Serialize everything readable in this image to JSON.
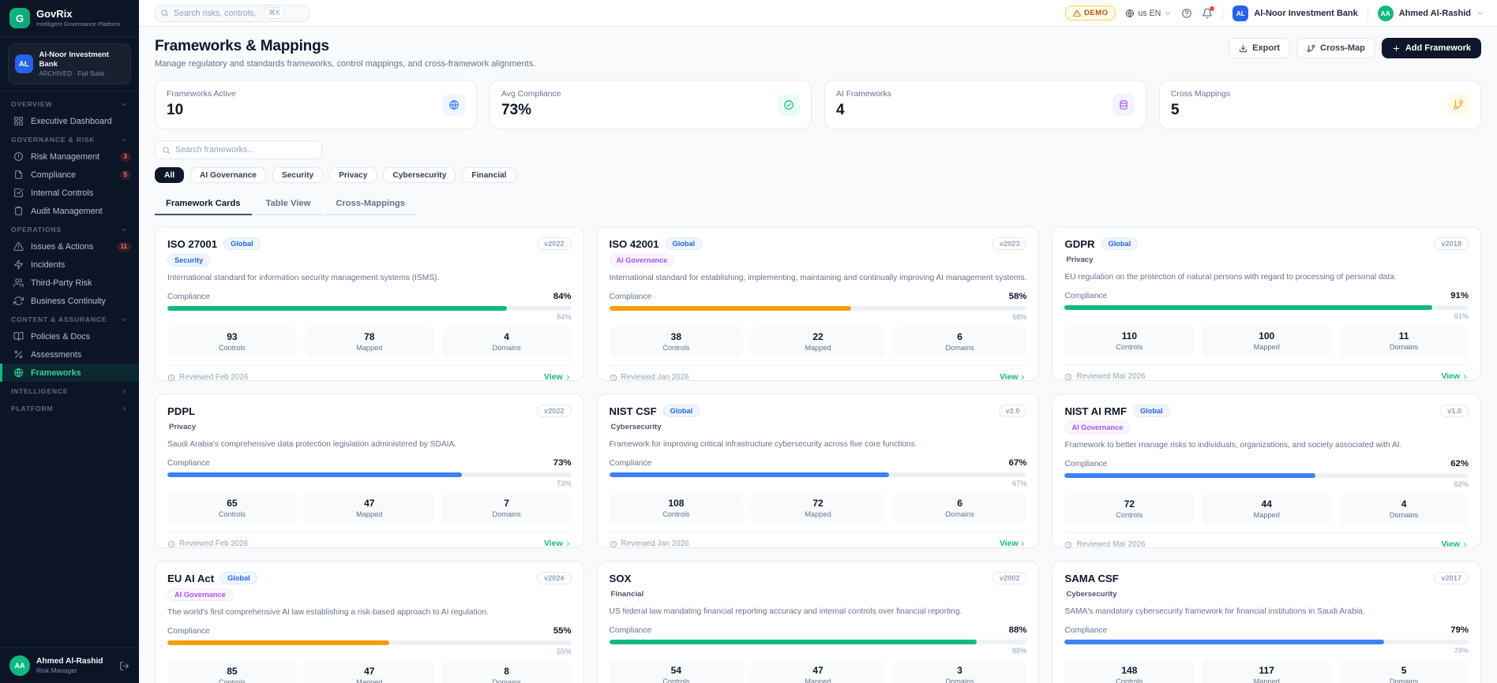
{
  "brand": {
    "initial": "G",
    "name": "GovRix",
    "tagline": "Intelligent Governance Platform"
  },
  "entity": {
    "initials": "AL",
    "name": "Al-Noor Investment Bank",
    "status": "ARCHIVED · Full Suite"
  },
  "topbar": {
    "search_placeholder": "Search risks, controls, frameworks...",
    "search_shortcut": "⌘K",
    "demo_label": "DEMO",
    "locale": "us EN",
    "org_initials": "AL",
    "org_name": "Al-Noor Investment Bank",
    "user_initials": "AA",
    "user_name": "Ahmed Al-Rashid"
  },
  "sidebar": {
    "sections": [
      {
        "label": "OVERVIEW",
        "chevron": "down",
        "items": [
          {
            "label": "Executive Dashboard",
            "icon": "grid"
          }
        ]
      },
      {
        "label": "GOVERNANCE & RISK",
        "chevron": "down",
        "items": [
          {
            "label": "Risk Management",
            "icon": "alert-circle",
            "badge": "3"
          },
          {
            "label": "Compliance",
            "icon": "file",
            "badge": "5"
          },
          {
            "label": "Internal Controls",
            "icon": "check-square"
          },
          {
            "label": "Audit Management",
            "icon": "clipboard"
          }
        ]
      },
      {
        "label": "OPERATIONS",
        "chevron": "down",
        "items": [
          {
            "label": "Issues & Actions",
            "icon": "alert-triangle",
            "badge": "11"
          },
          {
            "label": "Incidents",
            "icon": "zap"
          },
          {
            "label": "Third-Party Risk",
            "icon": "users"
          },
          {
            "label": "Business Continuity",
            "icon": "refresh"
          }
        ]
      },
      {
        "label": "CONTENT & ASSURANCE",
        "chevron": "down",
        "items": [
          {
            "label": "Policies & Docs",
            "icon": "book"
          },
          {
            "label": "Assessments",
            "icon": "percent"
          },
          {
            "label": "Frameworks",
            "icon": "globe",
            "active": true
          }
        ]
      },
      {
        "label": "INTELLIGENCE",
        "chevron": "right",
        "items": []
      },
      {
        "label": "PLATFORM",
        "chevron": "right",
        "items": []
      }
    ],
    "footer": {
      "initials": "AA",
      "name": "Ahmed Al-Rashid",
      "role": "Risk Manager"
    }
  },
  "page": {
    "title": "Frameworks & Mappings",
    "subtitle": "Manage regulatory and standards frameworks, control mappings, and cross-framework alignments.",
    "export_label": "Export",
    "crossmap_label": "Cross-Map",
    "add_label": "Add Framework"
  },
  "stats": [
    {
      "label": "Frameworks Active",
      "value": "10",
      "icon": "globe",
      "fg": "#3b82f6",
      "bg": "#eff6ff"
    },
    {
      "label": "Avg Compliance",
      "value": "73%",
      "icon": "check-circle",
      "fg": "#10b981",
      "bg": "#ecfdf5"
    },
    {
      "label": "AI Frameworks",
      "value": "4",
      "icon": "layers",
      "fg": "#a855f7",
      "bg": "#f5f3ff"
    },
    {
      "label": "Cross Mappings",
      "value": "5",
      "icon": "git-branch",
      "fg": "#f59e0b",
      "bg": "#fffbeb"
    }
  ],
  "filters": {
    "search_placeholder": "Search frameworks...",
    "chips": [
      "All",
      "AI Governance",
      "Security",
      "Privacy",
      "Cybersecurity",
      "Financial"
    ],
    "active_chip": "All"
  },
  "tabs": {
    "items": [
      "Framework Cards",
      "Table View",
      "Cross-Mappings"
    ],
    "active": "Framework Cards"
  },
  "cards": [
    {
      "title": "ISO 27001",
      "global": true,
      "version": "v2022",
      "category": "Security",
      "category_style": "blue",
      "description": "International standard for information security management systems (ISMS).",
      "compliance_label": "Compliance",
      "compliance": 84,
      "bar_color": "#10b981",
      "controls": "93",
      "mapped": "78",
      "domains": "4",
      "reviewed": "Reviewed Feb 2026",
      "view_label": "View"
    },
    {
      "title": "ISO 42001",
      "global": true,
      "version": "v2023",
      "category": "AI Governance",
      "category_style": "purple",
      "description": "International standard for establishing, implementing, maintaining and continually improving AI management systems.",
      "compliance_label": "Compliance",
      "compliance": 58,
      "bar_color": "#f59e0b",
      "controls": "38",
      "mapped": "22",
      "domains": "6",
      "reviewed": "Reviewed Jan 2026",
      "view_label": "View"
    },
    {
      "title": "GDPR",
      "global": true,
      "version": "v2018",
      "category": "Privacy",
      "category_style": "plain",
      "description": "EU regulation on the protection of natural persons with regard to processing of personal data.",
      "compliance_label": "Compliance",
      "compliance": 91,
      "bar_color": "#10b981",
      "controls": "110",
      "mapped": "100",
      "domains": "11",
      "reviewed": "Reviewed Mar 2026",
      "view_label": "View"
    },
    {
      "title": "PDPL",
      "global": false,
      "version": "v2022",
      "category": "Privacy",
      "category_style": "plain",
      "description": "Saudi Arabia's comprehensive data protection legislation administered by SDAIA.",
      "compliance_label": "Compliance",
      "compliance": 73,
      "bar_color": "#3b82f6",
      "controls": "65",
      "mapped": "47",
      "domains": "7",
      "reviewed": "Reviewed Feb 2026",
      "view_label": "View"
    },
    {
      "title": "NIST CSF",
      "global": true,
      "version": "v2.0",
      "category": "Cybersecurity",
      "category_style": "plain",
      "description": "Framework for improving critical infrastructure cybersecurity across five core functions.",
      "compliance_label": "Compliance",
      "compliance": 67,
      "bar_color": "#3b82f6",
      "controls": "108",
      "mapped": "72",
      "domains": "6",
      "reviewed": "Reviewed Jan 2026",
      "view_label": "View"
    },
    {
      "title": "NIST AI RMF",
      "global": true,
      "version": "v1.0",
      "category": "AI Governance",
      "category_style": "purple",
      "description": "Framework to better manage risks to individuals, organizations, and society associated with AI.",
      "compliance_label": "Compliance",
      "compliance": 62,
      "bar_color": "#3b82f6",
      "controls": "72",
      "mapped": "44",
      "domains": "4",
      "reviewed": "Reviewed Mar 2026",
      "view_label": "View"
    },
    {
      "title": "EU AI Act",
      "global": true,
      "version": "v2024",
      "category": "AI Governance",
      "category_style": "purple",
      "description": "The world's first comprehensive AI law establishing a risk-based approach to AI regulation.",
      "compliance_label": "Compliance",
      "compliance": 55,
      "bar_color": "#f59e0b",
      "controls": "85",
      "mapped": "47",
      "domains": "8",
      "reviewed": "",
      "view_label": "View"
    },
    {
      "title": "SOX",
      "global": false,
      "version": "v2002",
      "category": "Financial",
      "category_style": "plain",
      "description": "US federal law mandating financial reporting accuracy and internal controls over financial reporting.",
      "compliance_label": "Compliance",
      "compliance": 88,
      "bar_color": "#10b981",
      "controls": "54",
      "mapped": "47",
      "domains": "3",
      "reviewed": "",
      "view_label": "View"
    },
    {
      "title": "SAMA CSF",
      "global": false,
      "version": "v2017",
      "category": "Cybersecurity",
      "category_style": "plain",
      "description": "SAMA's mandatory cybersecurity framework for financial institutions in Saudi Arabia.",
      "compliance_label": "Compliance",
      "compliance": 79,
      "bar_color": "#3b82f6",
      "controls": "148",
      "mapped": "117",
      "domains": "5",
      "reviewed": "",
      "view_label": "View"
    }
  ],
  "card_stat_labels": {
    "controls": "Controls",
    "mapped": "Mapped",
    "domains": "Domains"
  },
  "colors": {
    "accent": "#10b981",
    "sidebar_bg": "#0c1525",
    "dark_button": "#0f172a",
    "demo": "#b45309"
  }
}
